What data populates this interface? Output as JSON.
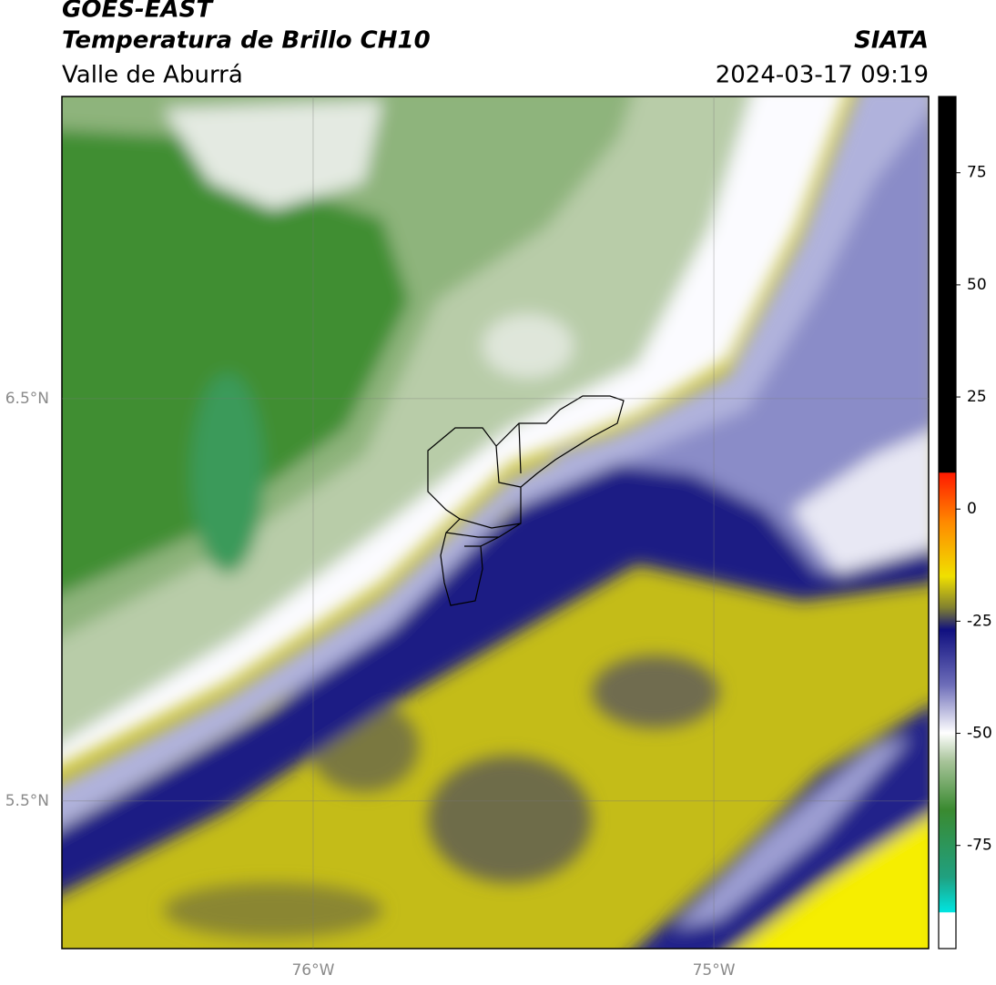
{
  "header": {
    "satellite": "GOES-EAST",
    "product": "Temperatura de Brillo CH10",
    "region": "Valle de Aburrá",
    "agency": "SIATA",
    "timestamp": "2024-03-17 09:19"
  },
  "map": {
    "lon_range": [
      -76.627,
      -74.464
    ],
    "lat_range": [
      5.133,
      7.251
    ],
    "lon_ticks": [
      {
        "value": -76,
        "label": "76°W"
      },
      {
        "value": -75,
        "label": "75°W"
      }
    ],
    "lat_ticks": [
      {
        "value": 6.5,
        "label": "6.5°N"
      },
      {
        "value": 5.5,
        "label": "5.5°N"
      }
    ]
  },
  "colorbar": {
    "range": [
      -98,
      92
    ],
    "ticks": [
      75,
      50,
      25,
      0,
      -25,
      -50,
      -75
    ]
  }
}
